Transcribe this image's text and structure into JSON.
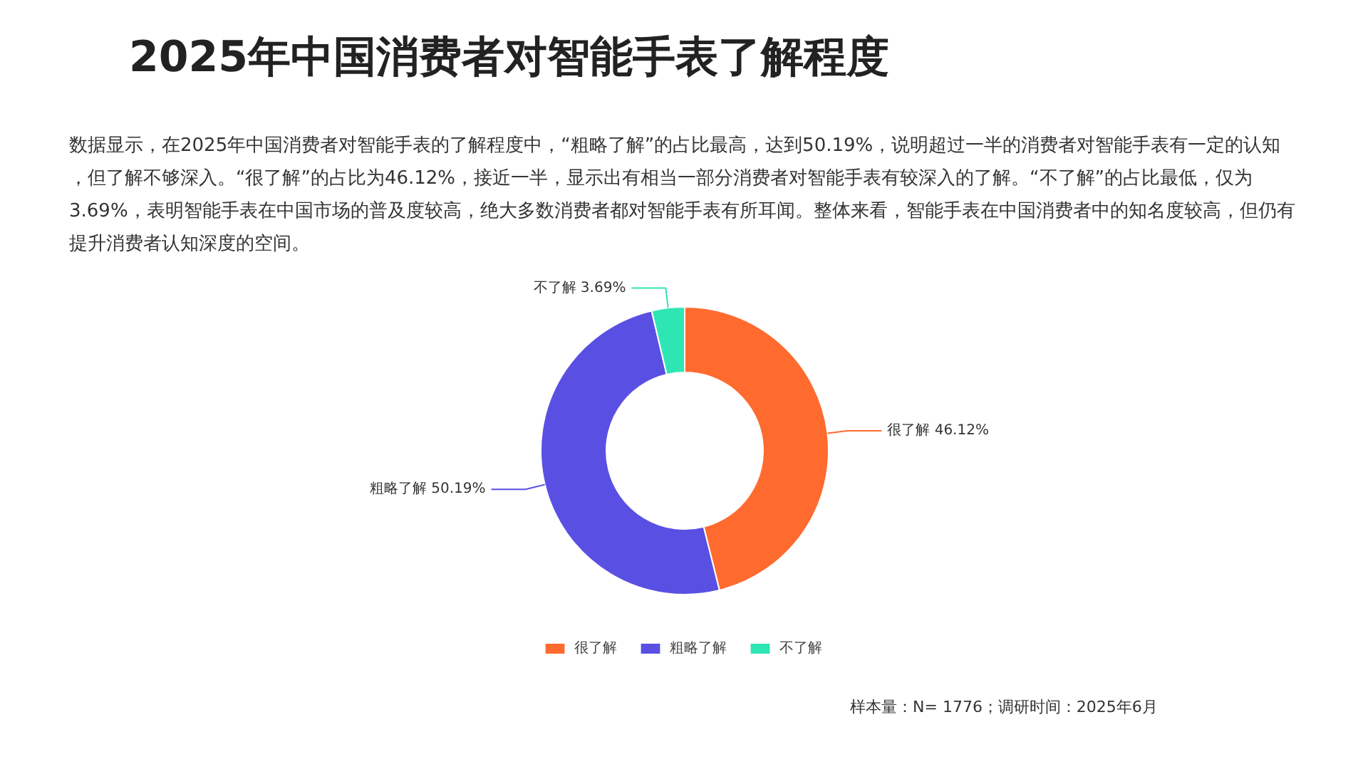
{
  "chart_data": {
    "type": "donut",
    "title": "2025年中国消费者对智能手表了解程度",
    "subtitle": "数据显示，在2025年中国消费者对智能手表的了解程度中，“粗略了解”的占比最高，达到50.19%，说明超过一半的消费者对智能手表有一定的认知，但了解不够深入。“很了解”的占比为46.12%，接近一半，显示出有相当一部分消费者对智能手表有较深入的了解。“不了解”的占比最低，仅为3.69%，表明智能手表在中国市场的普及度较高，绝大多数消费者都对智能手表有所耳闻。整体来看，智能手表在中国消费者中的知名度较高，但仍有提升消费者认知深度的空间。",
    "categories": [
      "很了解",
      "粗略了解",
      "不了解"
    ],
    "values": [
      46.12,
      50.19,
      3.69
    ],
    "value_labels": [
      "46.12%",
      "50.19%",
      "3.69%"
    ],
    "colors": [
      "#ff6b2e",
      "#5a4fe3",
      "#2ee6b4"
    ],
    "legend": "bottom",
    "annotations": [
      "样本量：N= 1776；调研时间：2025年6月"
    ]
  }
}
